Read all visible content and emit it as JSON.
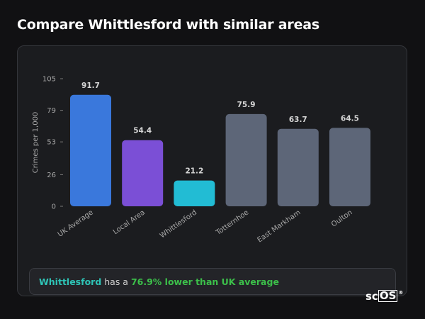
{
  "title": "Compare Whittlesford with similar areas",
  "chart_data": {
    "type": "bar",
    "categories": [
      "UK Average",
      "Local Area",
      "Whittlesford",
      "Totternhoe",
      "East Markham",
      "Oulton"
    ],
    "values": [
      91.7,
      54.4,
      21.2,
      75.9,
      63.7,
      64.5
    ],
    "value_labels": [
      "91.7",
      "54.4",
      "21.2",
      "75.9",
      "63.7",
      "64.5"
    ],
    "colors": [
      "#3a78dc",
      "#7b4fd6",
      "#22bcd4",
      "#5d6678",
      "#5d6678",
      "#5d6678"
    ],
    "ylabel": "Crimes per 1,000",
    "xlabel": "",
    "yticks": [
      0,
      26,
      53,
      79,
      105
    ],
    "ylim": [
      0,
      105
    ],
    "grid": false
  },
  "summary": {
    "area": "Whittlesford",
    "text": " has a ",
    "difference": "76.9% lower than UK average"
  },
  "brand": {
    "prefix": "sc",
    "boxed": "OS",
    "mark": "®"
  }
}
